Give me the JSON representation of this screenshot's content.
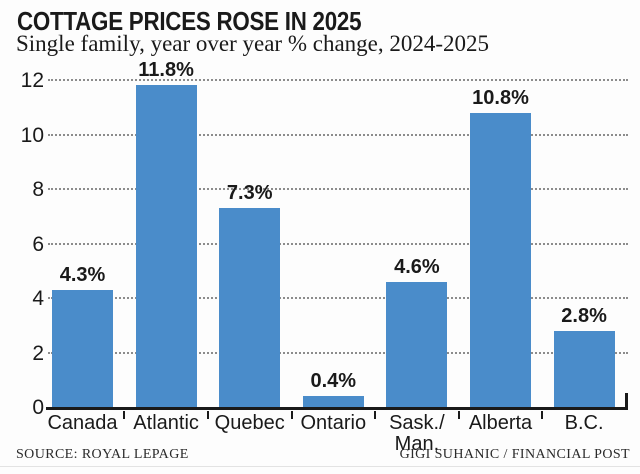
{
  "header": {
    "title": "COTTAGE PRICES ROSE IN 2025",
    "subtitle": "Single family, year over year % change, 2024-2025"
  },
  "footer": {
    "source": "SOURCE: ROYAL LEPAGE",
    "credit": "GIGI SUHANIC / FINANCIAL POST"
  },
  "colors": {
    "bar": "#4a8cca",
    "text": "#1a1a1a",
    "gridline": "#8c8c8c",
    "axis": "#1a1a1a",
    "background": "#fdfdfd"
  },
  "chart_data": {
    "type": "bar",
    "title": "COTTAGE PRICES ROSE IN 2025",
    "subtitle": "Single family, year over year % change, 2024-2025",
    "categories": [
      "Canada",
      "Atlantic",
      "Quebec",
      "Ontario",
      "Sask./\nMan.",
      "Alberta",
      "B.C."
    ],
    "values": [
      4.3,
      11.8,
      7.3,
      0.4,
      4.6,
      10.8,
      2.8
    ],
    "value_labels": [
      "4.3%",
      "11.8%",
      "7.3%",
      "0.4%",
      "4.6%",
      "10.8%",
      "2.8%"
    ],
    "xlabel": "",
    "ylabel": "",
    "ylim": [
      0,
      12
    ],
    "yticks": [
      0,
      2,
      4,
      6,
      8,
      10,
      12
    ],
    "grid": "horizontal-dotted",
    "legend": "none"
  }
}
